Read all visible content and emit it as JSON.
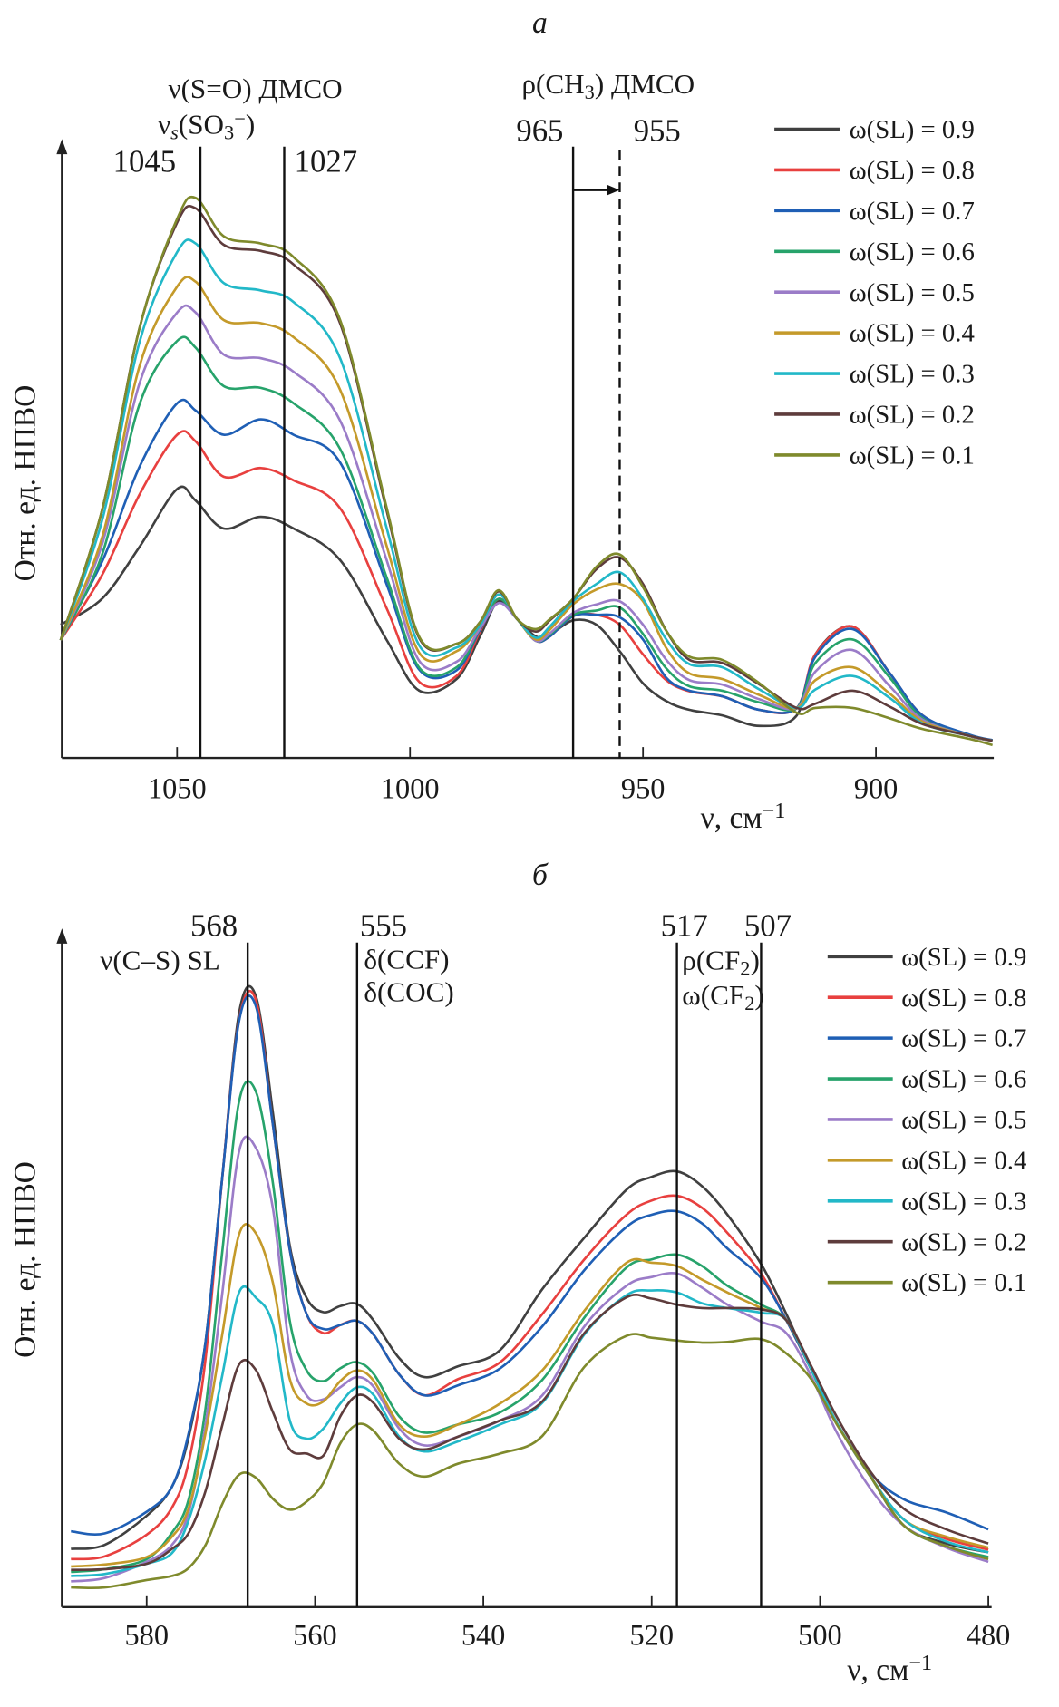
{
  "chart_data": [
    {
      "type": "line",
      "panel_label": "а",
      "ylabel": "Отн. ед. НПВО",
      "xlabel": {
        "text": "ν, см",
        "sup": "−1"
      },
      "xlim": [
        1075,
        875
      ],
      "ylim": [
        0,
        100
      ],
      "x_ticks": [
        1050,
        1000,
        950,
        900
      ],
      "grid": false,
      "legend_position": "top-right",
      "annotations": {
        "lines": [
          {
            "x": 1045,
            "style": "solid",
            "label": "1045"
          },
          {
            "x": 1027,
            "style": "solid",
            "label": "1027"
          },
          {
            "x": 965,
            "style": "solid",
            "label": "965"
          },
          {
            "x": 955,
            "style": "dashed",
            "label": "955"
          }
        ],
        "arrow": {
          "from": 965,
          "to": 955
        },
        "texts": [
          {
            "parts": [
              {
                "t": "ν(S=O) ДМСО"
              }
            ]
          },
          {
            "parts": [
              {
                "t": "ν"
              },
              {
                "t": "s",
                "sub": true,
                "it": true
              },
              {
                "t": "(SO"
              },
              {
                "t": "3",
                "sub": true
              },
              {
                "t": "−",
                "sup": true
              },
              {
                "t": ")"
              }
            ]
          },
          {
            "parts": [
              {
                "t": "ρ(CH"
              },
              {
                "t": "3",
                "sub": true
              },
              {
                "t": ") ДМСО"
              }
            ]
          }
        ]
      },
      "x": [
        1075,
        1066,
        1058,
        1050,
        1046,
        1040,
        1032,
        1025,
        1015,
        1005,
        998,
        990,
        985,
        981,
        977,
        973,
        970,
        965,
        960,
        955,
        950,
        945,
        940,
        933,
        925,
        917,
        913,
        905,
        897,
        890,
        880,
        875
      ],
      "series": [
        {
          "name": "ω(SL) = 0.9",
          "color": "#404040",
          "values": [
            21.6,
            25.9,
            34.3,
            43.6,
            41.7,
            37.2,
            39.1,
            37.2,
            32.1,
            19.1,
            10.9,
            12.8,
            19.7,
            25.4,
            22.5,
            19.7,
            20,
            22.3,
            21.6,
            17.3,
            12.1,
            9.2,
            7.8,
            6.9,
            5.2,
            6.9,
            16.8,
            21.3,
            13.7,
            6.9,
            3.6,
            2.8
          ]
        },
        {
          "name": "ω(SL) = 0.8",
          "color": "#e8403f",
          "values": [
            19.1,
            29.8,
            42.8,
            52.4,
            51.3,
            45.6,
            47,
            45,
            40.5,
            24.2,
            12.3,
            13.3,
            20.5,
            25.8,
            22.5,
            19,
            19.7,
            23,
            23.2,
            21.6,
            16.8,
            12.6,
            10.8,
            10,
            7.8,
            8.1,
            16.8,
            21.3,
            13.7,
            6.9,
            3.6,
            2.8
          ]
        },
        {
          "name": "ω(SL) = 0.7",
          "color": "#1f5fb5",
          "values": [
            19.1,
            32,
            47.3,
            57.5,
            56.3,
            52.4,
            54.9,
            52.4,
            47.9,
            28.1,
            14.3,
            14.2,
            20.8,
            25.1,
            22.5,
            19,
            19.7,
            23,
            23.2,
            22.8,
            19.2,
            13,
            10.9,
            10,
            7.8,
            8.1,
            16.4,
            20.9,
            13.7,
            6.9,
            3.8,
            2.9
          ]
        },
        {
          "name": "ω(SL) = 0.6",
          "color": "#27a36b",
          "values": [
            19.1,
            33.2,
            57.5,
            67.6,
            66.5,
            60.3,
            60,
            57.5,
            50.1,
            29.2,
            14.6,
            14.7,
            21,
            25.8,
            22.5,
            19,
            20,
            23.2,
            23.9,
            24.4,
            20.1,
            14.5,
            11.6,
            10.9,
            9,
            8.1,
            15.4,
            19.2,
            13,
            6.4,
            3.6,
            2.8
          ]
        },
        {
          "name": "ω(SL) = 0.5",
          "color": "#9b7cc8",
          "values": [
            19.1,
            34.9,
            60.9,
            72.2,
            72.2,
            65.4,
            64.8,
            62.6,
            54.7,
            32,
            15.7,
            15.6,
            21,
            25.1,
            22.5,
            19,
            20.2,
            23.5,
            24.9,
            25.4,
            21.6,
            15.9,
            12.6,
            11.9,
            9.5,
            8.1,
            14,
            17.5,
            11.6,
            6.2,
            3.6,
            2.8
          ]
        },
        {
          "name": "ω(SL) = 0.4",
          "color": "#c49a2a",
          "values": [
            19.1,
            36,
            63.7,
            76.4,
            77.2,
            71,
            70.5,
            68.2,
            59.7,
            34.3,
            17,
            17.3,
            21.5,
            26.5,
            22.5,
            19.2,
            20.8,
            24.9,
            27.3,
            28.2,
            25.4,
            17.8,
            13.7,
            12.8,
            10.2,
            8.1,
            12.6,
            14.7,
            10.4,
            5.9,
            3.6,
            2.8
          ]
        },
        {
          "name": "ω(SL) = 0.3",
          "color": "#22b8c8",
          "values": [
            19.1,
            38.8,
            67.6,
            82,
            83.4,
            77,
            75.8,
            73.9,
            64.8,
            37.2,
            18.2,
            17.9,
            21.5,
            26.5,
            22.5,
            19.5,
            21.3,
            25.4,
            28.2,
            30.1,
            25.8,
            19.2,
            15.2,
            14.7,
            11.1,
            8.1,
            11.1,
            13.3,
            9.7,
            5.6,
            3.6,
            2.8
          ]
        },
        {
          "name": "ω(SL) = 0.2",
          "color": "#5e3c3c",
          "values": [
            19.1,
            40.5,
            69.9,
            86.8,
            89.1,
            83.2,
            82.2,
            80,
            70.5,
            40,
            19.4,
            18.5,
            22,
            27,
            22.5,
            20.5,
            22.3,
            25.8,
            30.6,
            32.5,
            28.2,
            20.6,
            15.9,
            15.4,
            11.9,
            8.1,
            8.8,
            10.9,
            8.3,
            5.5,
            3.6,
            2.8
          ]
        },
        {
          "name": "ω(SL) = 0.1",
          "color": "#7f8a2c",
          "values": [
            19.1,
            40.5,
            69.9,
            87.4,
            90.8,
            84.6,
            83.4,
            81.2,
            71,
            40.5,
            19.6,
            18.5,
            22,
            27.2,
            22.5,
            20.9,
            22.5,
            25.8,
            31,
            33,
            27.7,
            20.6,
            16.4,
            15.9,
            12.1,
            7.3,
            8.1,
            8.1,
            6.4,
            4.7,
            3.1,
            2.1
          ]
        }
      ]
    },
    {
      "type": "line",
      "panel_label": "б",
      "ylabel": "Отн. ед. НПВО",
      "xlabel": {
        "text": "ν, см",
        "sup": "−1"
      },
      "xlim": [
        590,
        480
      ],
      "ylim": [
        0,
        100
      ],
      "x_ticks": [
        580,
        560,
        540,
        520,
        500,
        480
      ],
      "grid": false,
      "legend_position": "top-right",
      "annotations": {
        "lines": [
          {
            "x": 568,
            "style": "solid",
            "label": "568"
          },
          {
            "x": 555,
            "style": "solid",
            "label": "555"
          },
          {
            "x": 517,
            "style": "solid",
            "label": "517"
          },
          {
            "x": 507,
            "style": "solid",
            "label": "507"
          }
        ],
        "texts": [
          {
            "parts": [
              {
                "t": "ν(C–S) SL"
              }
            ]
          },
          {
            "parts": [
              {
                "t": "δ(CCF)"
              }
            ]
          },
          {
            "parts": [
              {
                "t": "δ(COC)"
              }
            ]
          },
          {
            "parts": [
              {
                "t": "ρ(CF"
              },
              {
                "t": "2",
                "sub": true
              },
              {
                "t": ")"
              }
            ]
          },
          {
            "parts": [
              {
                "t": "ω(CF"
              },
              {
                "t": "2",
                "sub": true
              },
              {
                "t": ")"
              }
            ]
          }
        ]
      },
      "x": [
        589,
        585,
        580,
        577,
        575,
        573,
        571,
        569,
        567,
        565,
        563,
        561,
        559,
        557,
        555,
        553,
        550,
        547,
        543,
        538,
        533,
        528,
        523,
        520,
        517,
        514,
        511,
        507,
        504,
        501,
        498,
        494,
        490,
        485,
        480
      ],
      "series": [
        {
          "name": "ω(SL) = 0.9",
          "color": "#404040",
          "values": [
            8.6,
            9.2,
            13.5,
            17.8,
            25.2,
            39.3,
            63.8,
            88,
            90.2,
            73,
            53.4,
            45.7,
            43.6,
            44.5,
            44.8,
            42.3,
            36.8,
            34,
            35.6,
            38,
            47,
            54.6,
            61.7,
            63.6,
            64.4,
            62.2,
            58,
            50.7,
            43.3,
            35,
            27.2,
            19.3,
            12,
            9.4,
            8.1
          ]
        },
        {
          "name": "ω(SL) = 0.8",
          "color": "#e8403f",
          "values": [
            7.1,
            7.5,
            10.7,
            14.7,
            21.5,
            36.8,
            63.8,
            87,
            89.6,
            71.2,
            52.8,
            43.3,
            40.5,
            41.7,
            42.3,
            40.2,
            34.4,
            31.3,
            33.7,
            36.2,
            43.3,
            51.4,
            58,
            60.1,
            60.8,
            59,
            55.3,
            49.3,
            42.4,
            35,
            27.2,
            19.3,
            12.9,
            10.1,
            8.5
          ]
        },
        {
          "name": "ω(SL) = 0.7",
          "color": "#1f5fb5",
          "values": [
            11.2,
            10.9,
            14.1,
            17.8,
            25.8,
            39.3,
            63.8,
            86.8,
            88.7,
            71.2,
            52.8,
            43.3,
            41.1,
            41.7,
            42.3,
            40.2,
            34.4,
            31.3,
            32.8,
            35.3,
            41.5,
            49.8,
            56.2,
            58,
            58.5,
            56.7,
            53,
            48.6,
            42.4,
            35,
            27.2,
            19.8,
            15.9,
            14,
            11.5
          ]
        },
        {
          "name": "ω(SL) = 0.6",
          "color": "#27a36b",
          "values": [
            5.2,
            5.6,
            7.1,
            11,
            16,
            29.5,
            52.8,
            74.9,
            76.1,
            62.6,
            42.3,
            35,
            33.4,
            35.3,
            36.2,
            34.4,
            28.2,
            25.8,
            27,
            28.8,
            33.6,
            42.8,
            50.2,
            51.4,
            52.1,
            50.4,
            47.5,
            44.7,
            42.4,
            35,
            27.2,
            19.3,
            12,
            9,
            7.4
          ]
        },
        {
          "name": "ω(SL) = 0.5",
          "color": "#9b7cc8",
          "values": [
            3.8,
            4.3,
            6.7,
            9.2,
            14.1,
            27,
            46.6,
            67.5,
            67.8,
            58.9,
            38,
            31.3,
            30.7,
            32.5,
            34,
            32.5,
            26.4,
            23.9,
            25.2,
            27.6,
            31.3,
            41.5,
            47.5,
            48.8,
            49.3,
            47.2,
            44.7,
            42.2,
            40.5,
            34,
            25.8,
            17.5,
            12,
            8.8,
            6.7
          ]
        },
        {
          "name": "ω(SL) = 0.4",
          "color": "#c49a2a",
          "values": [
            6,
            6.3,
            7.4,
            10.4,
            14.7,
            25.8,
            40.5,
            55.2,
            55.2,
            47.9,
            33.7,
            30.1,
            30.4,
            33.4,
            35,
            33.4,
            27,
            25.2,
            27,
            30.1,
            35,
            43.8,
            50.9,
            50.9,
            50.4,
            48.4,
            46.5,
            44.2,
            42.4,
            35,
            27.2,
            19.3,
            12.9,
            10.4,
            8.8
          ]
        },
        {
          "name": "ω(SL) = 0.3",
          "color": "#22b8c8",
          "values": [
            4.6,
            4.9,
            6.4,
            8,
            12.9,
            22.1,
            34.4,
            46.6,
            45.7,
            41.7,
            27.6,
            24.9,
            26.4,
            30.1,
            32.5,
            31.3,
            25.2,
            23,
            24.5,
            27,
            30.2,
            40.3,
            46.1,
            46.8,
            46.5,
            44.9,
            44.2,
            43.5,
            42.4,
            35,
            27.2,
            19.3,
            12.9,
            9.7,
            8.1
          ]
        },
        {
          "name": "ω(SL) = 0.2",
          "color": "#5e3c3c",
          "values": [
            5.5,
            5.6,
            6.4,
            8.6,
            11,
            17.2,
            27,
            35.9,
            35,
            28.8,
            23.3,
            22.7,
            22.4,
            28.2,
            31.3,
            30.1,
            24.9,
            23.3,
            25.2,
            27.6,
            30.4,
            40.5,
            45.8,
            45.6,
            44.7,
            44.2,
            44.2,
            44,
            42.4,
            35.5,
            28.1,
            20,
            14.5,
            11.5,
            9.4
          ]
        },
        {
          "name": "ω(SL) = 0.1",
          "color": "#7f8a2c",
          "values": [
            2.9,
            2.9,
            4,
            4.6,
            5.8,
            9.2,
            15.3,
            19.6,
            19.1,
            16,
            14.4,
            15.6,
            18.4,
            24.2,
            27,
            26,
            21.2,
            19.3,
            21.2,
            22.7,
            25.3,
            35.5,
            40.1,
            39.8,
            39.4,
            39.1,
            39.2,
            39.6,
            37.5,
            33.6,
            27,
            19.3,
            12,
            9,
            7.1
          ]
        }
      ]
    }
  ]
}
